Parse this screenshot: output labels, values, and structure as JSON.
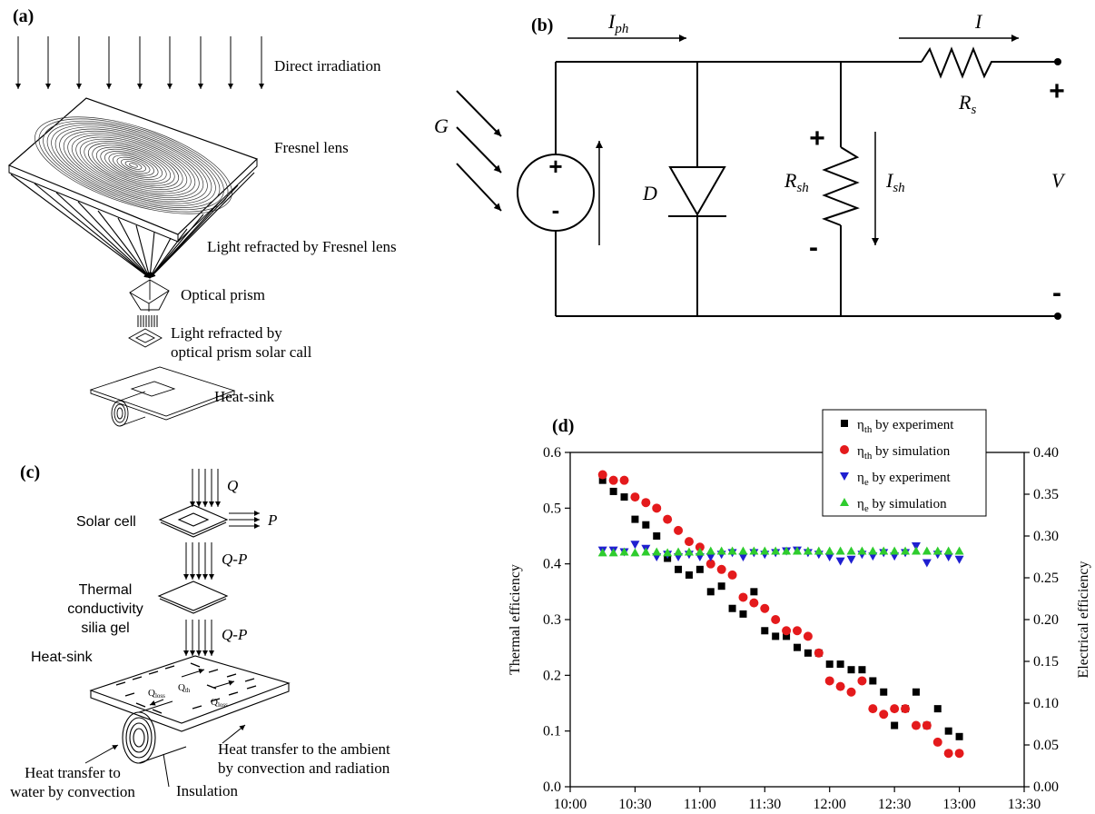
{
  "panel_a": {
    "label": "(a)",
    "direct_irradiation": "Direct irradiation",
    "fresnel_lens": "Fresnel lens",
    "light_refracted_fresnel": "Light refracted by Fresnel lens",
    "optical_prism": "Optical prism",
    "light_refracted_prism_1": "Light refracted by",
    "light_refracted_prism_2": "optical prism solar call",
    "heat_sink": "Heat-sink"
  },
  "panel_b": {
    "label": "(b)",
    "iph": "I",
    "iph_sub": "ph",
    "i": "I",
    "g": "G",
    "d": "D",
    "rsh": "R",
    "rsh_sub": "sh",
    "ish": "I",
    "ish_sub": "sh",
    "rs": "R",
    "rs_sub": "s",
    "v": "V",
    "plus": "+",
    "minus": "-"
  },
  "panel_c": {
    "label": "(c)",
    "q": "Q",
    "p": "P",
    "q_minus_p_1": "Q-P",
    "q_minus_p_2": "Q-P",
    "solar_cell": "Solar cell",
    "thermal_1": "Thermal",
    "thermal_2": "conductivity",
    "thermal_3": "silia gel",
    "heat_sink": "Heat-sink",
    "q_loss_1": "Q",
    "q_loss_1_sub": "loss",
    "q_th": "Q",
    "q_th_sub": "th",
    "q_loss_2": "Q",
    "q_loss_2_sub": "loss",
    "ambient_1": "Heat transfer to the ambient",
    "ambient_2": "by convection and radiation",
    "water_1": "Heat transfer to",
    "water_2": "water by convection",
    "insulation": "Insulation"
  },
  "chart_data": {
    "type": "scatter",
    "label": "(d)",
    "x_ticks": [
      "10:00",
      "10:30",
      "11:00",
      "11:30",
      "12:00",
      "12:30",
      "13:00",
      "13:30"
    ],
    "xlim": [
      "10:00",
      "13:30"
    ],
    "ylabel": "Thermal efficiency",
    "y2label": "Electrical efficiency",
    "ylim": [
      0.0,
      0.6
    ],
    "y2lim": [
      0.0,
      0.4
    ],
    "y_ticks": [
      "0.0",
      "0.1",
      "0.2",
      "0.3",
      "0.4",
      "0.5",
      "0.6"
    ],
    "y2_ticks": [
      "0.00",
      "0.05",
      "0.10",
      "0.15",
      "0.20",
      "0.25",
      "0.30",
      "0.35",
      "0.40"
    ],
    "legend_position": "top-right",
    "series": [
      {
        "name": "ηth by experiment",
        "name_main": "η",
        "name_sub": "th",
        "name_rest": " by experiment",
        "axis": "left",
        "marker": "square",
        "color": "#000000",
        "x": [
          "10:15",
          "10:20",
          "10:25",
          "10:30",
          "10:35",
          "10:40",
          "10:45",
          "10:50",
          "10:55",
          "11:00",
          "11:05",
          "11:10",
          "11:15",
          "11:20",
          "11:25",
          "11:30",
          "11:35",
          "11:40",
          "11:45",
          "11:50",
          "11:55",
          "12:00",
          "12:05",
          "12:10",
          "12:15",
          "12:20",
          "12:25",
          "12:30",
          "12:35",
          "12:40",
          "12:45",
          "12:50",
          "12:55",
          "13:00"
        ],
        "y": [
          0.55,
          0.53,
          0.52,
          0.48,
          0.47,
          0.45,
          0.41,
          0.39,
          0.38,
          0.39,
          0.35,
          0.36,
          0.32,
          0.31,
          0.35,
          0.28,
          0.27,
          0.27,
          0.25,
          0.24,
          0.24,
          0.22,
          0.22,
          0.21,
          0.21,
          0.19,
          0.17,
          0.11,
          0.14,
          0.17,
          0.11,
          0.14,
          0.1,
          0.09
        ]
      },
      {
        "name": "ηth by simulation",
        "name_main": "η",
        "name_sub": "th",
        "name_rest": " by simulation",
        "axis": "left",
        "marker": "circle",
        "color": "#e41a1c",
        "x": [
          "10:15",
          "10:20",
          "10:25",
          "10:30",
          "10:35",
          "10:40",
          "10:45",
          "10:50",
          "10:55",
          "11:00",
          "11:05",
          "11:10",
          "11:15",
          "11:20",
          "11:25",
          "11:30",
          "11:35",
          "11:40",
          "11:45",
          "11:50",
          "11:55",
          "12:00",
          "12:05",
          "12:10",
          "12:15",
          "12:20",
          "12:25",
          "12:30",
          "12:35",
          "12:40",
          "12:45",
          "12:50",
          "12:55",
          "13:00"
        ],
        "y": [
          0.56,
          0.55,
          0.55,
          0.52,
          0.51,
          0.5,
          0.48,
          0.46,
          0.44,
          0.43,
          0.4,
          0.39,
          0.38,
          0.34,
          0.33,
          0.32,
          0.3,
          0.28,
          0.28,
          0.27,
          0.24,
          0.19,
          0.18,
          0.17,
          0.19,
          0.14,
          0.13,
          0.14,
          0.14,
          0.11,
          0.11,
          0.08,
          0.06,
          0.06
        ]
      },
      {
        "name": "ηe by experiment",
        "name_main": "η",
        "name_sub": "e",
        "name_rest": " by experiment",
        "axis": "right",
        "marker": "triangle-down",
        "color": "#1f1fd0",
        "x": [
          "10:15",
          "10:20",
          "10:25",
          "10:30",
          "10:35",
          "10:40",
          "10:45",
          "10:50",
          "10:55",
          "11:00",
          "11:05",
          "11:10",
          "11:15",
          "11:20",
          "11:25",
          "11:30",
          "11:35",
          "11:40",
          "11:45",
          "11:50",
          "11:55",
          "12:00",
          "12:05",
          "12:10",
          "12:15",
          "12:20",
          "12:25",
          "12:30",
          "12:35",
          "12:40",
          "12:45",
          "12:50",
          "12:55",
          "13:00"
        ],
        "y": [
          0.283,
          0.283,
          0.281,
          0.29,
          0.285,
          0.275,
          0.278,
          0.275,
          0.278,
          0.275,
          0.275,
          0.278,
          0.28,
          0.275,
          0.28,
          0.278,
          0.28,
          0.282,
          0.283,
          0.28,
          0.278,
          0.275,
          0.27,
          0.272,
          0.278,
          0.276,
          0.28,
          0.276,
          0.28,
          0.288,
          0.268,
          0.278,
          0.275,
          0.272
        ]
      },
      {
        "name": "ηe by simulation",
        "name_main": "η",
        "name_sub": "e",
        "name_rest": " by simulation",
        "axis": "right",
        "marker": "triangle-up",
        "color": "#2ecc2e",
        "x": [
          "10:15",
          "10:20",
          "10:25",
          "10:30",
          "10:35",
          "10:40",
          "10:45",
          "10:50",
          "10:55",
          "11:00",
          "11:05",
          "11:10",
          "11:15",
          "11:20",
          "11:25",
          "11:30",
          "11:35",
          "11:40",
          "11:45",
          "11:50",
          "11:55",
          "12:00",
          "12:05",
          "12:10",
          "12:15",
          "12:20",
          "12:25",
          "12:30",
          "12:35",
          "12:40",
          "12:45",
          "12:50",
          "12:55",
          "13:00"
        ],
        "y": [
          0.28,
          0.28,
          0.281,
          0.28,
          0.281,
          0.281,
          0.28,
          0.281,
          0.281,
          0.281,
          0.282,
          0.282,
          0.282,
          0.282,
          0.282,
          0.282,
          0.282,
          0.282,
          0.282,
          0.282,
          0.282,
          0.282,
          0.282,
          0.282,
          0.282,
          0.282,
          0.282,
          0.282,
          0.282,
          0.282,
          0.282,
          0.282,
          0.282,
          0.282
        ]
      }
    ]
  }
}
